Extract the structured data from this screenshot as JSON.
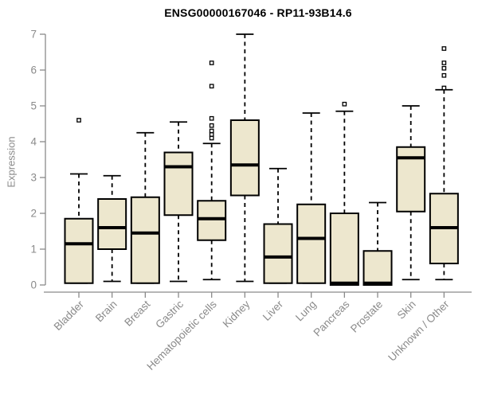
{
  "chart_data": {
    "type": "boxplot",
    "title": "ENSG00000167046 - RP11-93B14.6",
    "xlabel": "",
    "ylabel": "Expression",
    "ylim": [
      0,
      7
    ],
    "yticks": [
      0,
      1,
      2,
      3,
      4,
      5,
      6,
      7
    ],
    "grid": false,
    "legend": false,
    "categories": [
      "Bladder",
      "Brain",
      "Breast",
      "Gastric",
      "Hematopoietic cells",
      "Kidney",
      "Liver",
      "Lung",
      "Pancreas",
      "Prostate",
      "Skin",
      "Unknown / Other"
    ],
    "series": [
      {
        "name": "Bladder",
        "whisker_low": 0.05,
        "q1": 0.05,
        "median": 1.15,
        "q3": 1.85,
        "whisker_high": 3.1,
        "outliers": [
          4.6
        ]
      },
      {
        "name": "Brain",
        "whisker_low": 0.1,
        "q1": 1.0,
        "median": 1.6,
        "q3": 2.4,
        "whisker_high": 3.05,
        "outliers": []
      },
      {
        "name": "Breast",
        "whisker_low": 0.05,
        "q1": 0.05,
        "median": 1.45,
        "q3": 2.45,
        "whisker_high": 4.25,
        "outliers": []
      },
      {
        "name": "Gastric",
        "whisker_low": 0.1,
        "q1": 1.95,
        "median": 3.3,
        "q3": 3.7,
        "whisker_high": 4.55,
        "outliers": []
      },
      {
        "name": "Hematopoietic cells",
        "whisker_low": 0.15,
        "q1": 1.25,
        "median": 1.85,
        "q3": 2.35,
        "whisker_high": 3.95,
        "outliers": [
          6.2,
          5.55,
          4.65,
          4.45,
          4.3,
          4.2,
          4.1
        ]
      },
      {
        "name": "Kidney",
        "whisker_low": 0.1,
        "q1": 2.5,
        "median": 3.35,
        "q3": 4.6,
        "whisker_high": 7.0,
        "outliers": []
      },
      {
        "name": "Liver",
        "whisker_low": 0.05,
        "q1": 0.05,
        "median": 0.78,
        "q3": 1.7,
        "whisker_high": 3.25,
        "outliers": []
      },
      {
        "name": "Lung",
        "whisker_low": 0.05,
        "q1": 0.05,
        "median": 1.3,
        "q3": 2.25,
        "whisker_high": 4.8,
        "outliers": []
      },
      {
        "name": "Pancreas",
        "whisker_low": 0.0,
        "q1": 0.0,
        "median": 0.05,
        "q3": 2.0,
        "whisker_high": 4.85,
        "outliers": [
          5.05
        ]
      },
      {
        "name": "Prostate",
        "whisker_low": 0.0,
        "q1": 0.0,
        "median": 0.05,
        "q3": 0.95,
        "whisker_high": 2.3,
        "outliers": []
      },
      {
        "name": "Skin",
        "whisker_low": 0.15,
        "q1": 2.05,
        "median": 3.55,
        "q3": 3.85,
        "whisker_high": 5.0,
        "outliers": []
      },
      {
        "name": "Unknown / Other",
        "whisker_low": 0.15,
        "q1": 0.6,
        "median": 1.6,
        "q3": 2.55,
        "whisker_high": 5.45,
        "outliers": [
          6.6,
          6.2,
          6.05,
          5.85,
          5.5
        ]
      }
    ],
    "colors": {
      "box_fill": "#EDE7CE",
      "box_border": "#000000",
      "median": "#000000",
      "whisker": "#000000",
      "outlier_border": "#000000",
      "axis": "#8a8a8a",
      "tick_label": "#8a8a8a",
      "title": "#000000",
      "background": "#ffffff"
    }
  }
}
